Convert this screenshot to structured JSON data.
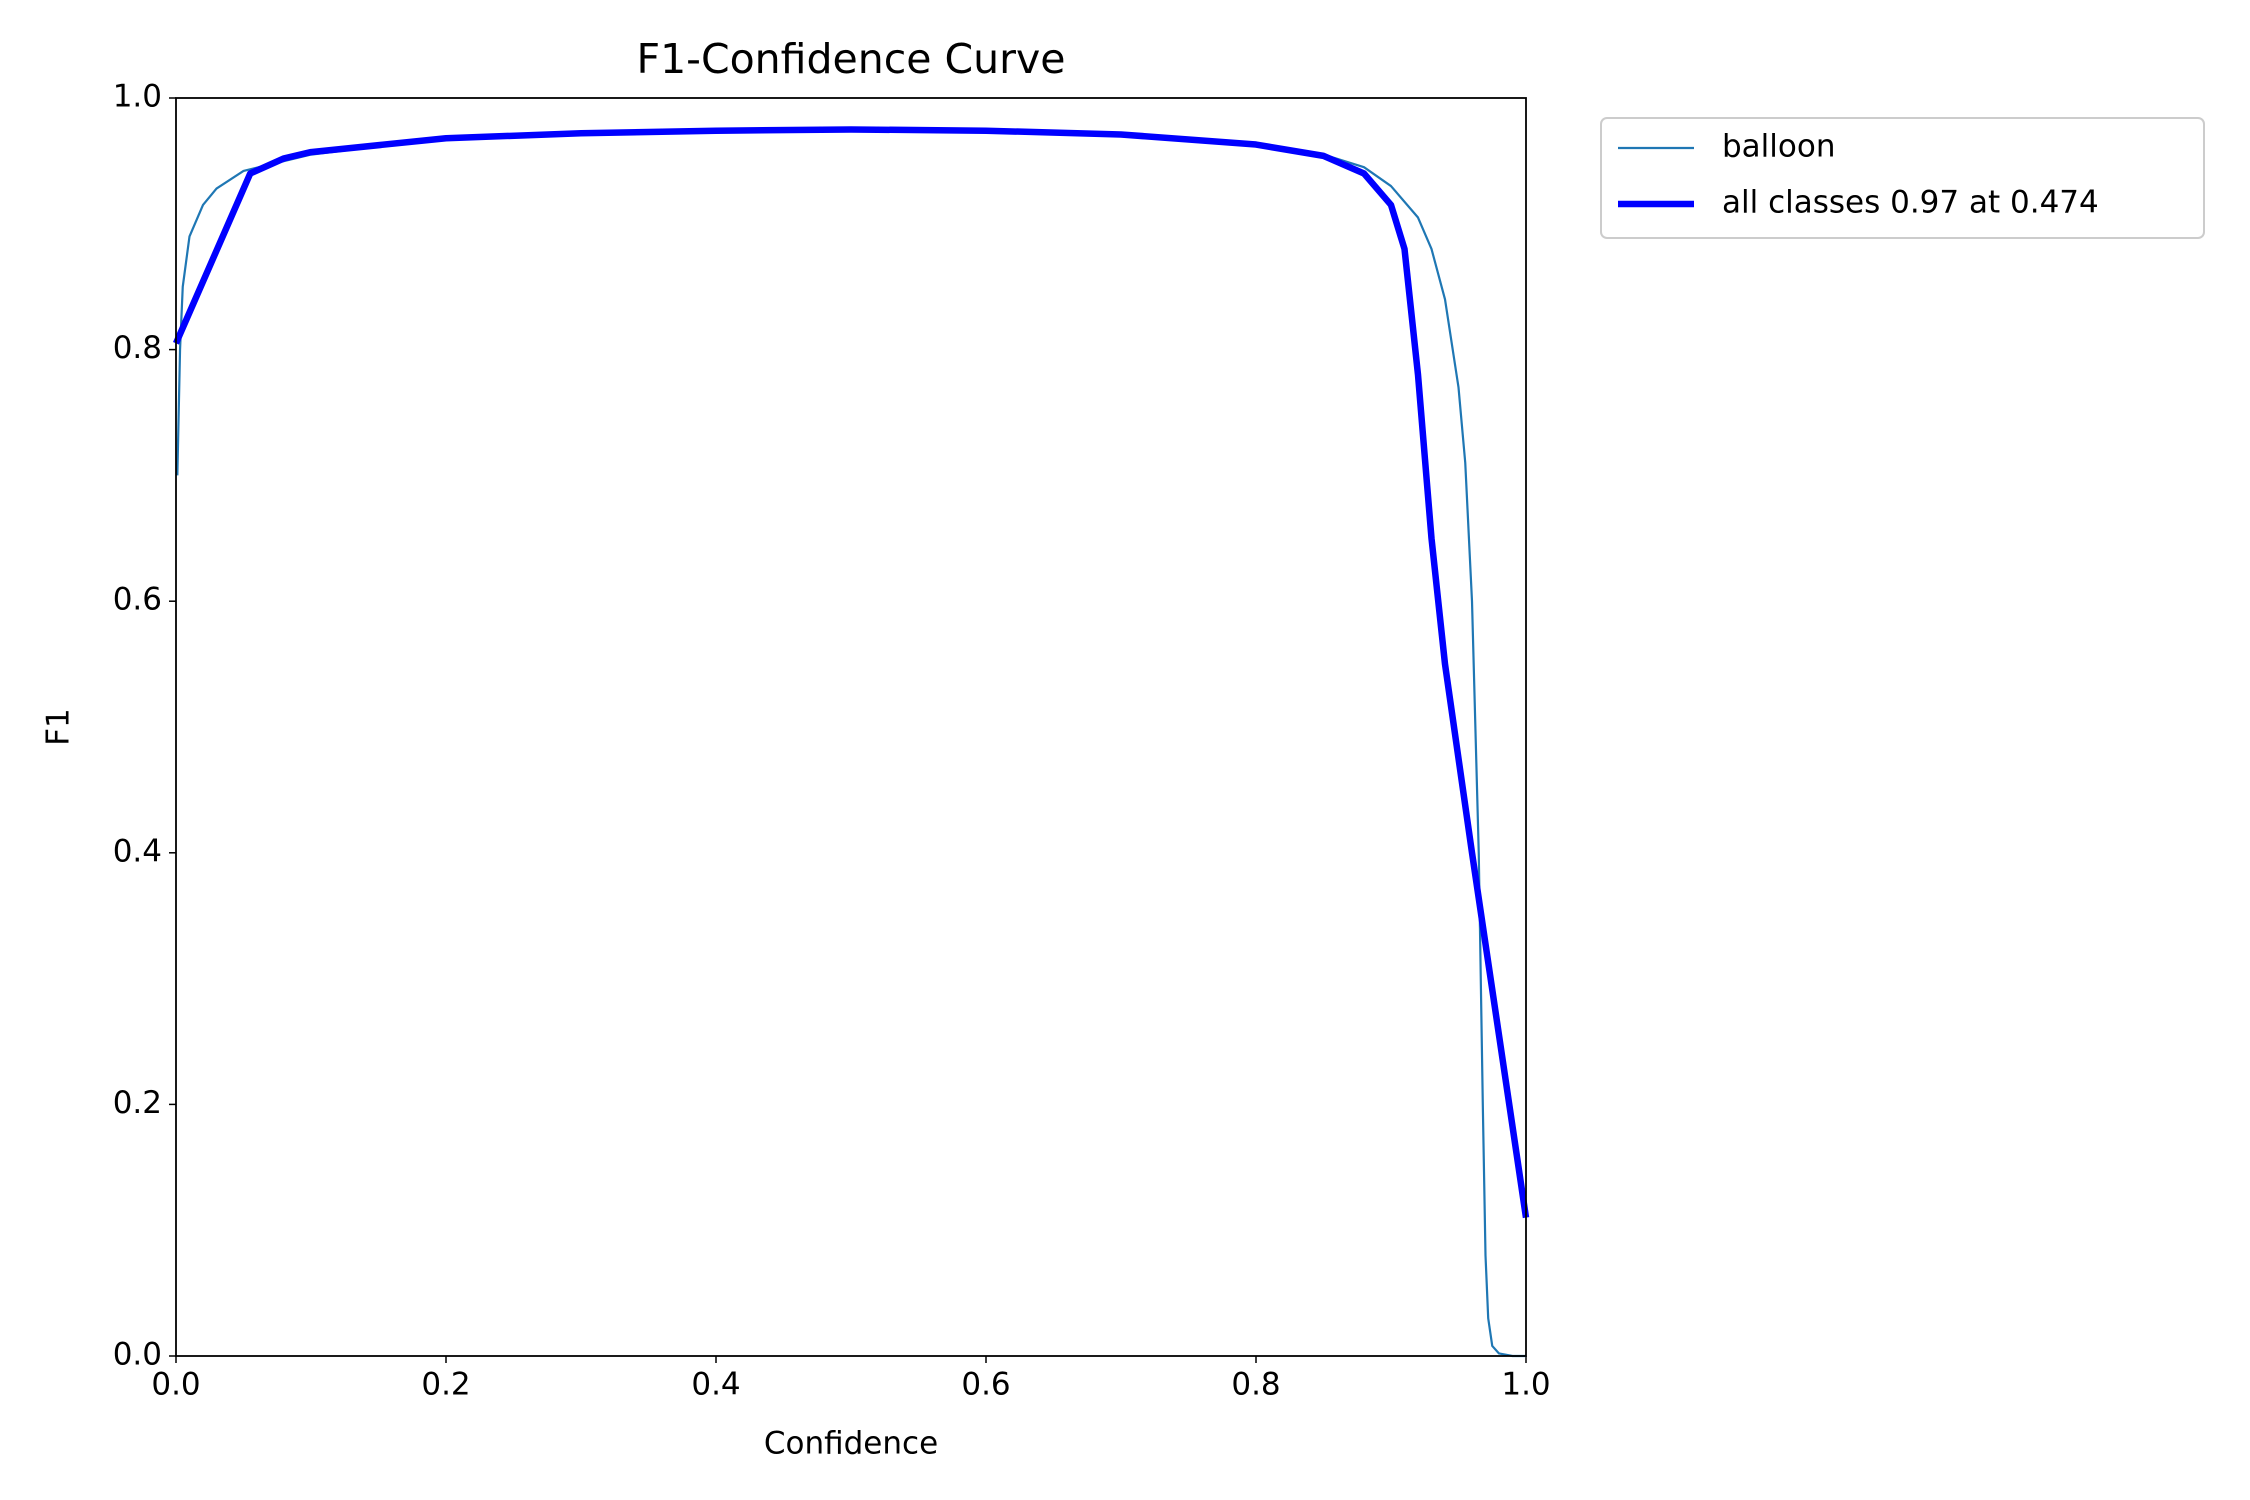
{
  "chart_data": {
    "type": "line",
    "title": "F1-Confidence Curve",
    "x_label": "Confidence",
    "y_label": "F1",
    "xlim": [
      0,
      1
    ],
    "ylim": [
      0,
      1
    ],
    "xticks": [
      {
        "value": 0,
        "label": "0.0"
      },
      0.2,
      0.4,
      0.6,
      0.8,
      {
        "value": 1,
        "label": "1.0"
      }
    ],
    "yticks": [
      {
        "value": 0,
        "label": "0.0"
      },
      0.2,
      0.4,
      0.6,
      0.8,
      {
        "value": 1,
        "label": "1.0"
      }
    ],
    "series": [
      {
        "name": "balloon",
        "color": "#1f77b4",
        "x": [
          0.001,
          0.003,
          0.005,
          0.01,
          0.02,
          0.03,
          0.05,
          0.1,
          0.2,
          0.3,
          0.4,
          0.5,
          0.6,
          0.7,
          0.8,
          0.85,
          0.88,
          0.9,
          0.92,
          0.93,
          0.94,
          0.95,
          0.955,
          0.96,
          0.965,
          0.968,
          0.97,
          0.972,
          0.975,
          0.98,
          0.99,
          1.0
        ],
        "values": [
          0.7,
          0.8,
          0.85,
          0.89,
          0.915,
          0.928,
          0.942,
          0.955,
          0.968,
          0.972,
          0.974,
          0.975,
          0.974,
          0.971,
          0.963,
          0.955,
          0.945,
          0.93,
          0.905,
          0.88,
          0.84,
          0.77,
          0.71,
          0.6,
          0.4,
          0.2,
          0.08,
          0.03,
          0.008,
          0.002,
          0.0,
          0.0
        ]
      },
      {
        "name": "all classes 0.97 at 0.474",
        "color": "#0000ff",
        "x": [
          0.0,
          0.055,
          0.08,
          0.1,
          0.2,
          0.3,
          0.4,
          0.5,
          0.6,
          0.7,
          0.8,
          0.85,
          0.88,
          0.9,
          0.91,
          0.92,
          0.93,
          0.94,
          0.96,
          0.98,
          1.0
        ],
        "values": [
          0.805,
          0.94,
          0.952,
          0.957,
          0.968,
          0.972,
          0.974,
          0.975,
          0.974,
          0.971,
          0.963,
          0.954,
          0.94,
          0.915,
          0.88,
          0.78,
          0.65,
          0.55,
          0.4,
          0.255,
          0.11
        ]
      }
    ]
  }
}
